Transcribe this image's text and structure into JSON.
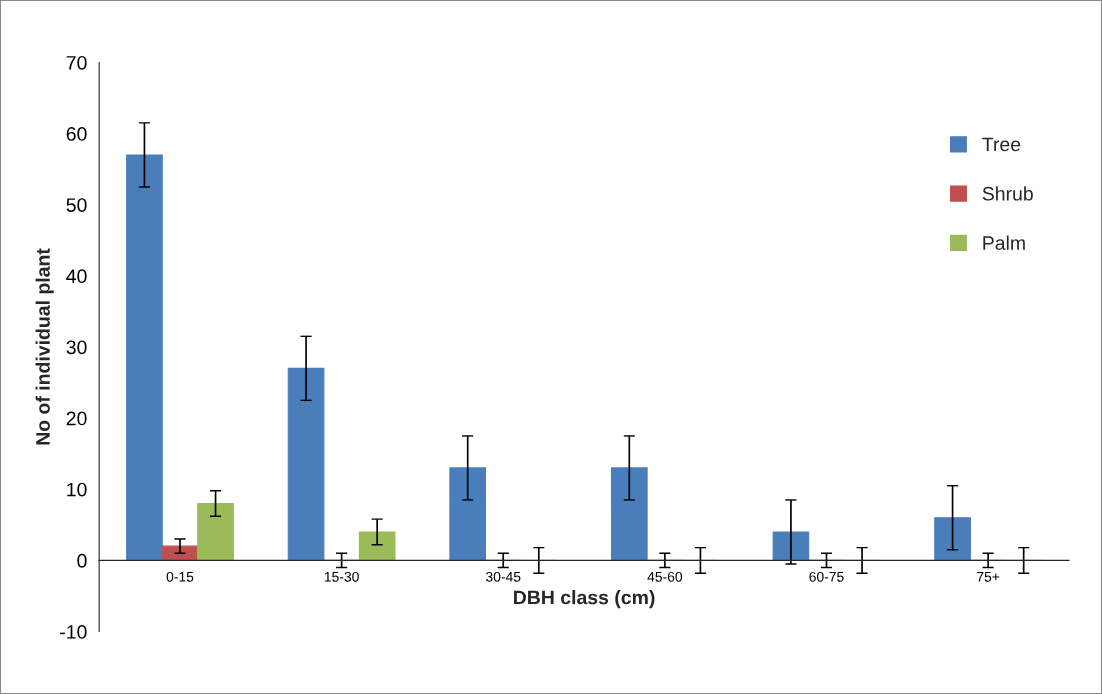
{
  "chart_data": {
    "type": "bar",
    "xlabel": "DBH class (cm)",
    "ylabel": "No of individual plant",
    "categories": [
      "0-15",
      "15-30",
      "30-45",
      "45-60",
      "60-75",
      "75+"
    ],
    "series": [
      {
        "name": "Tree",
        "color": "#4a7ebb",
        "values": [
          57,
          27,
          13,
          13,
          4,
          6
        ],
        "errors": [
          4.5,
          4.5,
          4.5,
          4.5,
          4.5,
          4.5
        ]
      },
      {
        "name": "Shrub",
        "color": "#c0504d",
        "values": [
          2,
          0,
          0,
          0,
          0,
          0
        ],
        "errors": [
          1,
          1,
          1,
          1,
          1,
          1
        ]
      },
      {
        "name": "Palm",
        "color": "#9bbb59",
        "values": [
          8,
          4,
          0,
          0,
          0,
          0
        ],
        "errors": [
          1.8,
          1.8,
          1.8,
          1.8,
          1.8,
          1.8
        ]
      }
    ],
    "ylim": [
      -10,
      70
    ],
    "yticks": [
      -10,
      0,
      10,
      20,
      30,
      40,
      50,
      60,
      70
    ],
    "grid": false,
    "legend": "right"
  }
}
